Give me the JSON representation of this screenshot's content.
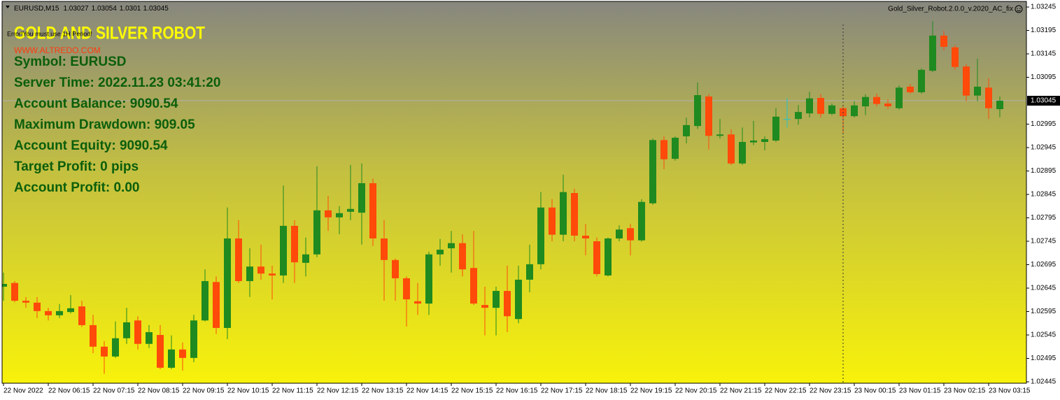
{
  "chart_data": {
    "type": "candlestick",
    "symbol_period": "EURUSD,M15",
    "indicator_name": "Gold_Silver_Robot.2.0.0_v.2020_AC_fix",
    "categories": [
      "22 Nov 2022",
      null,
      null,
      null,
      "22 Nov 06:15",
      null,
      null,
      null,
      "22 Nov 07:15",
      null,
      null,
      null,
      "22 Nov 08:15",
      null,
      null,
      null,
      "22 Nov 09:15",
      null,
      null,
      null,
      "22 Nov 10:15",
      null,
      null,
      null,
      "22 Nov 11:15",
      null,
      null,
      null,
      "22 Nov 12:15",
      null,
      null,
      null,
      "22 Nov 13:15",
      null,
      null,
      null,
      "22 Nov 14:15",
      null,
      null,
      null,
      "22 Nov 15:15",
      null,
      null,
      null,
      "22 Nov 16:15",
      null,
      null,
      null,
      "22 Nov 17:15",
      null,
      null,
      null,
      "22 Nov 18:15",
      null,
      null,
      null,
      "22 Nov 19:15",
      null,
      null,
      null,
      "22 Nov 20:15",
      null,
      null,
      null,
      "22 Nov 21:15",
      null,
      null,
      null,
      "22 Nov 22:15",
      null,
      null,
      null,
      "22 Nov 23:15",
      null,
      null,
      null,
      "23 Nov 00:15",
      null,
      null,
      null,
      "23 Nov 01:15",
      null,
      null,
      null,
      "23 Nov 02:15",
      null,
      null,
      null,
      "23 Nov 03:15",
      null
    ],
    "open": [
      1.02648,
      1.02656,
      1.02618,
      1.02614,
      1.02596,
      1.02587,
      1.02594,
      1.02606,
      1.02566,
      1.0252,
      1.02499,
      1.02538,
      1.02576,
      1.02526,
      1.02545,
      1.02475,
      1.02514,
      1.02496,
      1.02576,
      1.02658,
      1.0256,
      1.02751,
      1.0266,
      1.02691,
      1.02676,
      1.02672,
      1.02778,
      1.02699,
      1.02717,
      1.02811,
      1.02796,
      1.02808,
      1.02806,
      1.02869,
      1.02751,
      1.02705,
      1.02666,
      1.02617,
      1.02612,
      1.02717,
      1.0273,
      1.02741,
      1.02688,
      1.02609,
      1.02603,
      1.02639,
      1.02579,
      1.02663,
      1.02696,
      1.02817,
      1.02759,
      1.02848,
      1.02757,
      1.02745,
      1.02672,
      1.02751,
      1.02773,
      1.02747,
      1.02826,
      1.02961,
      1.02921,
      1.02969,
      1.02991,
      1.03054,
      1.0297,
      1.02973,
      1.02911,
      1.02956,
      1.02957,
      1.0296,
      1.03006,
      1.03006,
      1.03018,
      1.03051,
      1.03017,
      1.03029,
      1.03012,
      1.03033,
      1.03053,
      1.03039,
      1.03029,
      1.03075,
      1.03063,
      1.03109,
      1.03184,
      1.03159,
      1.03118,
      1.03056,
      1.03073,
      1.03027
    ],
    "high": [
      1.02678,
      1.0266,
      1.02626,
      1.02626,
      1.02603,
      1.02611,
      1.0263,
      1.02618,
      1.02588,
      1.02532,
      1.02574,
      1.02603,
      1.02585,
      1.02566,
      1.02566,
      1.02544,
      1.02529,
      1.02588,
      1.02685,
      1.0267,
      1.02817,
      1.0279,
      1.0273,
      1.02738,
      1.02693,
      1.02864,
      1.0279,
      1.02753,
      1.02905,
      1.02842,
      1.0282,
      1.02908,
      1.02911,
      1.02879,
      1.0279,
      1.02708,
      1.0267,
      1.02656,
      1.02723,
      1.0275,
      1.02767,
      1.0276,
      1.02767,
      1.02648,
      1.02648,
      1.02693,
      1.02693,
      1.02738,
      1.0285,
      1.02835,
      1.02887,
      1.02857,
      1.02782,
      1.02753,
      1.02753,
      1.02779,
      1.02782,
      1.02835,
      1.02964,
      1.02969,
      1.02969,
      1.03009,
      1.03084,
      1.03059,
      1.03006,
      1.02984,
      1.02988,
      1.03002,
      1.02969,
      1.03029,
      1.03051,
      1.03036,
      1.03064,
      1.03059,
      1.03039,
      1.03036,
      1.03044,
      1.03059,
      1.0306,
      1.03048,
      1.03078,
      1.03081,
      1.03114,
      1.03215,
      1.03194,
      1.03164,
      1.03123,
      1.03135,
      1.03093,
      1.03054
    ],
    "low": [
      1.02618,
      1.02615,
      1.02603,
      1.02581,
      1.02576,
      1.02581,
      1.02591,
      1.02562,
      1.02506,
      1.02462,
      1.02496,
      1.02526,
      1.02514,
      1.02517,
      1.02472,
      1.02472,
      1.02469,
      1.02487,
      1.02574,
      1.02547,
      1.02536,
      1.02656,
      1.02626,
      1.02663,
      1.02621,
      1.02656,
      1.02656,
      1.0267,
      1.02711,
      1.02767,
      1.0276,
      1.0279,
      1.02738,
      1.02735,
      1.02618,
      1.02618,
      1.02563,
      1.02588,
      1.02588,
      1.02693,
      1.02678,
      1.0267,
      1.02609,
      1.02544,
      1.02544,
      1.02551,
      1.0257,
      1.02636,
      1.02685,
      1.02745,
      1.02745,
      1.02745,
      1.02715,
      1.0267,
      1.0267,
      1.02745,
      1.02715,
      1.02744,
      1.02823,
      1.02899,
      1.02917,
      1.02954,
      1.02985,
      1.02941,
      1.02964,
      1.02908,
      1.02908,
      1.0295,
      1.02939,
      1.02957,
      1.02988,
      1.02994,
      1.03009,
      1.03009,
      1.03014,
      1.02976,
      1.03009,
      1.03014,
      1.03033,
      1.03027,
      1.03026,
      1.0306,
      1.0306,
      1.03106,
      1.03153,
      1.03111,
      1.03044,
      1.03044,
      1.03006,
      1.0301
    ],
    "close": [
      1.02654,
      1.02618,
      1.02614,
      1.02596,
      1.02587,
      1.02596,
      1.02602,
      1.02566,
      1.0252,
      1.02499,
      1.02538,
      1.02572,
      1.02526,
      1.02551,
      1.02475,
      1.02514,
      1.02496,
      1.02576,
      1.0266,
      1.0256,
      1.02751,
      1.0266,
      1.02691,
      1.02676,
      1.02672,
      1.02778,
      1.027,
      1.02717,
      1.02811,
      1.02796,
      1.02805,
      1.02814,
      1.02869,
      1.02751,
      1.02705,
      1.02666,
      1.02621,
      1.02612,
      1.02717,
      1.02727,
      1.02741,
      1.02685,
      1.02612,
      1.02603,
      1.02639,
      1.02585,
      1.02663,
      1.02696,
      1.02817,
      1.02759,
      1.0285,
      1.02757,
      1.02751,
      1.02675,
      1.02751,
      1.0277,
      1.02747,
      1.02829,
      1.02961,
      1.0292,
      1.02966,
      1.02993,
      1.03057,
      1.0297,
      1.02973,
      1.02911,
      1.02957,
      1.0296,
      1.02963,
      1.03011,
      1.03006,
      1.03021,
      1.0305,
      1.03017,
      1.03035,
      1.03012,
      1.03035,
      1.03053,
      1.03038,
      1.03033,
      1.03073,
      1.03063,
      1.03111,
      1.03184,
      1.0316,
      1.03117,
      1.03056,
      1.03075,
      1.03029,
      1.03045
    ],
    "up_color": "#1f8a1f",
    "down_color": "#ff4a0a",
    "doji_color": "#22c4cc",
    "current_price": 1.03045,
    "ylim": [
      1.02442,
      1.0326
    ],
    "yticks": [
      1.03245,
      1.03195,
      1.03145,
      1.03095,
      1.02995,
      1.02945,
      1.02895,
      1.02845,
      1.02795,
      1.02745,
      1.02695,
      1.02645,
      1.02595,
      1.02545,
      1.02495,
      1.02445
    ]
  },
  "overlay": {
    "robot_title": "GOLD AND SILVER ROBOT",
    "error": "Error!You must use 1H Period!",
    "website": "WWW.ALTREDO.COM",
    "info": [
      "Symbol: EURUSD",
      "Server Time: 2022.11.23 03:41:20",
      "Account Balance: 9090.54",
      "Maximum Drawdown: 909.05",
      "Account Equity: 9090.54",
      "Target Profit: 0 pips",
      "Account Profit: 0.00"
    ]
  }
}
